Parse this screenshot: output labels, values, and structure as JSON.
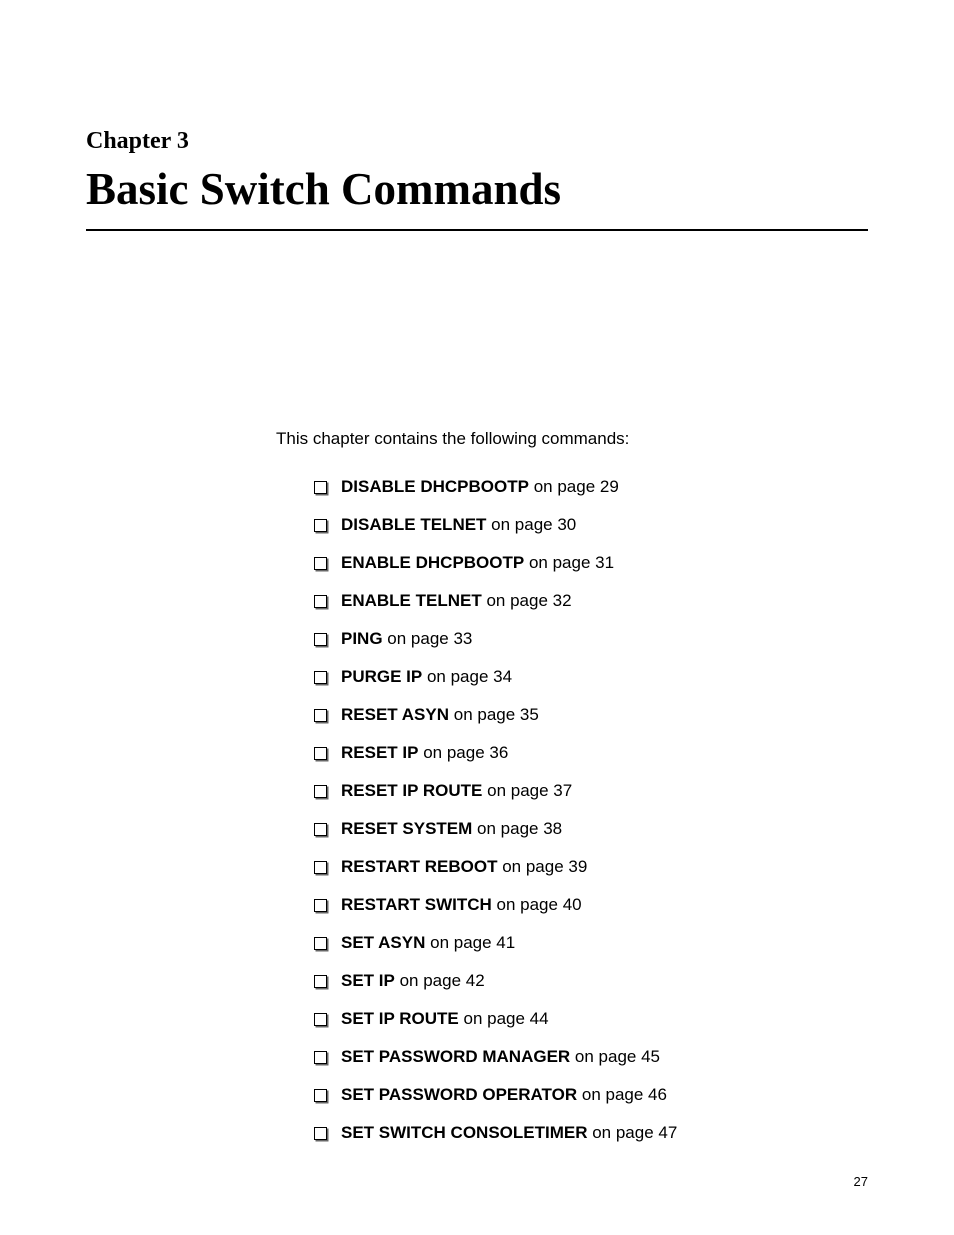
{
  "chapter": {
    "label": "Chapter 3",
    "title": "Basic Switch Commands"
  },
  "intro": "This chapter contains the following commands:",
  "commands": [
    {
      "name": "DISABLE DHCPBOOTP",
      "page": "29"
    },
    {
      "name": "DISABLE TELNET",
      "page": "30"
    },
    {
      "name": "ENABLE DHCPBOOTP",
      "page": "31"
    },
    {
      "name": "ENABLE TELNET",
      "page": "32"
    },
    {
      "name": "PING",
      "page": "33"
    },
    {
      "name": "PURGE IP",
      "page": "34"
    },
    {
      "name": "RESET ASYN",
      "page": "35"
    },
    {
      "name": "RESET IP",
      "page": "36"
    },
    {
      "name": "RESET IP ROUTE",
      "page": "37"
    },
    {
      "name": "RESET SYSTEM",
      "page": "38"
    },
    {
      "name": "RESTART REBOOT",
      "page": "39"
    },
    {
      "name": "RESTART SWITCH",
      "page": "40"
    },
    {
      "name": "SET ASYN",
      "page": "41"
    },
    {
      "name": "SET IP",
      "page": "42"
    },
    {
      "name": "SET IP ROUTE",
      "page": "44"
    },
    {
      "name": "SET PASSWORD MANAGER",
      "page": "45"
    },
    {
      "name": "SET PASSWORD OPERATOR",
      "page": "46"
    },
    {
      "name": "SET SWITCH CONSOLETIMER",
      "page": "47"
    }
  ],
  "page_number": "27",
  "page_ref_prefix": " on page "
}
